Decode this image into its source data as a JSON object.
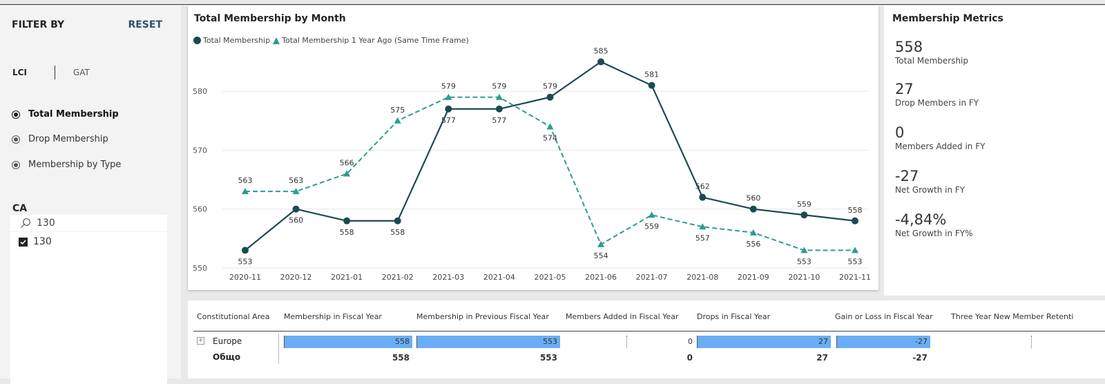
{
  "filter": {
    "title": "FILTER BY",
    "reset": "RESET",
    "toggle": {
      "lci": "LCI",
      "gat": "GAT"
    },
    "radios": [
      {
        "label": "Total Membership",
        "selected": true
      },
      {
        "label": "Drop Membership",
        "selected": false
      },
      {
        "label": "Membership by Type",
        "selected": false
      }
    ],
    "ca_label": "CA",
    "search_value": "130",
    "list_items": [
      {
        "label": "130",
        "checked": true
      }
    ]
  },
  "chart": {
    "title": "Total Membership by Month",
    "legend": [
      "Total Membership",
      "Total Membership 1 Year Ago (Same Time Frame)"
    ]
  },
  "chart_data": {
    "type": "line",
    "title": "Total Membership by Month",
    "categories": [
      "2020-11",
      "2020-12",
      "2021-01",
      "2021-02",
      "2021-03",
      "2021-04",
      "2021-05",
      "2021-06",
      "2021-07",
      "2021-08",
      "2021-09",
      "2021-10",
      "2021-11"
    ],
    "series": [
      {
        "name": "Total Membership",
        "values": [
          553,
          560,
          558,
          558,
          577,
          577,
          579,
          585,
          581,
          562,
          560,
          559,
          558
        ],
        "color": "#1b4a52",
        "style": "solid",
        "marker": "circle"
      },
      {
        "name": "Total Membership 1 Year Ago (Same Time Frame)",
        "values": [
          563,
          563,
          566,
          575,
          579,
          579,
          574,
          554,
          559,
          557,
          556,
          553,
          553
        ],
        "color": "#2a9d8f",
        "style": "dashed",
        "marker": "triangle"
      }
    ],
    "yticks": [
      550,
      560,
      570,
      580
    ],
    "ylim": [
      550,
      586
    ],
    "grid": true,
    "legend_position": "top-left"
  },
  "metrics": {
    "title": "Membership Metrics",
    "items": [
      {
        "value": "558",
        "label": "Total Membership"
      },
      {
        "value": "27",
        "label": "Drop Members in FY"
      },
      {
        "value": "0",
        "label": "Members Added in FY"
      },
      {
        "value": "-27",
        "label": "Net Growth in FY"
      },
      {
        "value": "-4,84%",
        "label": "Net Growth in FY%"
      }
    ]
  },
  "table": {
    "headers": [
      "Constitutional Area",
      "Membership in Fiscal Year",
      "Membership in Previous Fiscal Year",
      "Members Added in Fiscal Year",
      "Drops in Fiscal Year",
      "Gain or Loss in Fiscal Year",
      "Three Year New Member Retenti"
    ],
    "rows": [
      {
        "label": "Europe",
        "cells": [
          "558",
          "553",
          "0",
          "27",
          "-27",
          ""
        ]
      }
    ],
    "total": {
      "label": "Общо",
      "cells": [
        "558",
        "553",
        "0",
        "27",
        "-27",
        ""
      ]
    }
  },
  "colors": {
    "line1": "#1b4a52",
    "line2": "#2a9d8f",
    "bar": "#69aef5"
  }
}
